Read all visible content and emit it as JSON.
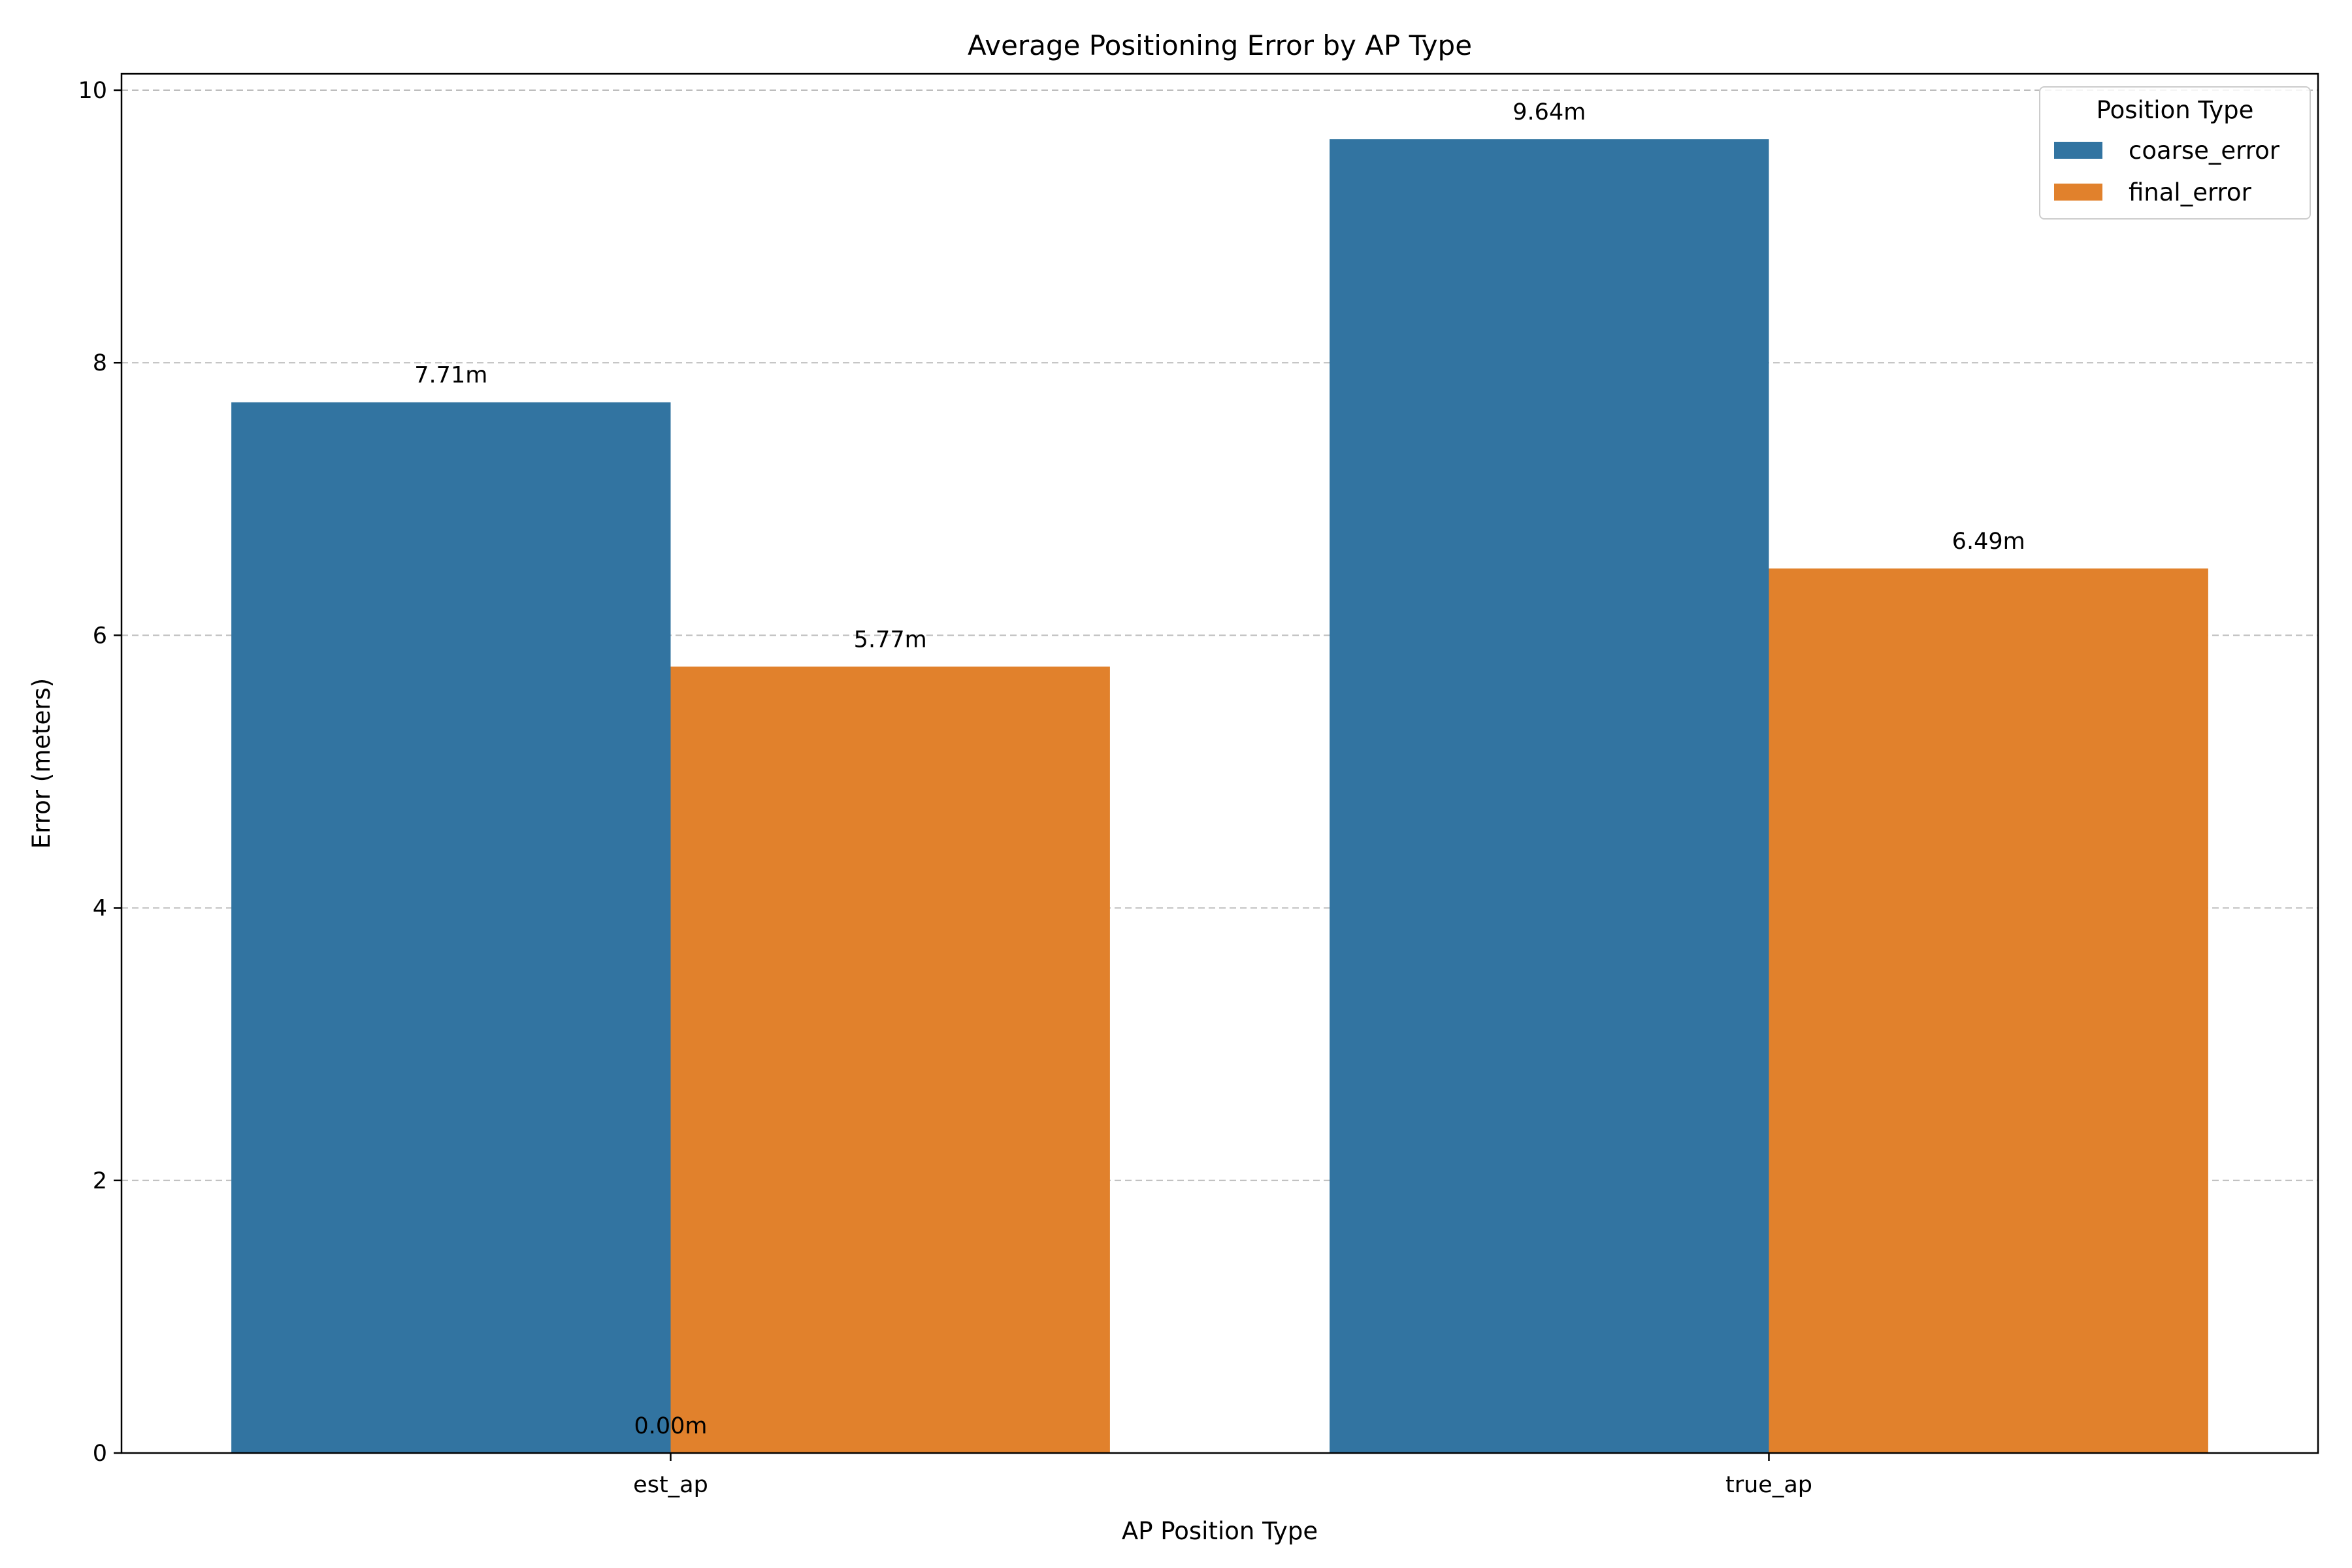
{
  "chart_data": {
    "type": "bar",
    "title": "Average Positioning Error by AP Type",
    "xlabel": "AP Position Type",
    "ylabel": "Error (meters)",
    "categories": [
      "est_ap",
      "true_ap"
    ],
    "series": [
      {
        "name": "coarse_error",
        "color": "#3274a1",
        "values": [
          7.71,
          9.64
        ]
      },
      {
        "name": "final_error",
        "color": "#e1812c",
        "values": [
          5.77,
          6.49
        ]
      }
    ],
    "data_labels": [
      {
        "text": "7.71m",
        "category": "est_ap",
        "series": "coarse_error",
        "value": 7.71
      },
      {
        "text": "5.77m",
        "category": "est_ap",
        "series": "final_error",
        "value": 5.77
      },
      {
        "text": "9.64m",
        "category": "true_ap",
        "series": "coarse_error",
        "value": 9.64
      },
      {
        "text": "6.49m",
        "category": "true_ap",
        "series": "final_error",
        "value": 6.49
      },
      {
        "text": "0.00m",
        "category": "est_ap",
        "series": "",
        "value": 0
      }
    ],
    "ylim": [
      0,
      10.12
    ],
    "yticks": [
      0,
      2,
      4,
      6,
      8,
      10
    ],
    "grid": "y-dashed",
    "legend": {
      "title": "Position Type",
      "placement": "top-right"
    }
  }
}
